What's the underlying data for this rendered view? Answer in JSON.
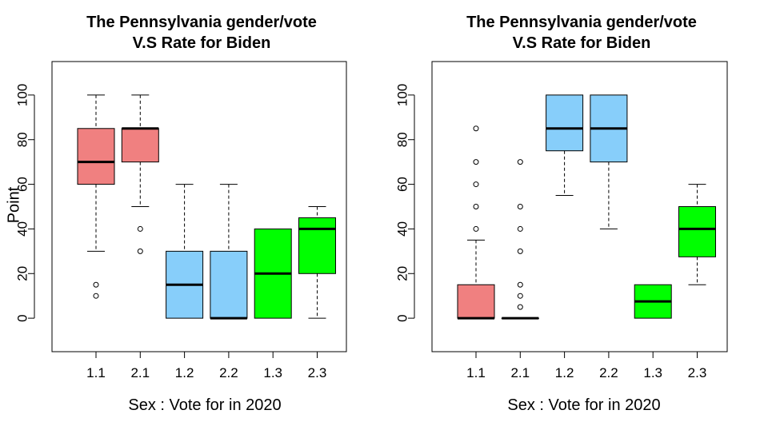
{
  "chart_data": [
    {
      "type": "boxplot",
      "title_lines": [
        "The Pennsylvania gender/vote",
        "V.S Rate for Biden"
      ],
      "xlabel": "Sex : Vote for in 2020",
      "ylabel": "Point",
      "ylim": [
        -15,
        115
      ],
      "yticks": [
        "0",
        "20",
        "40",
        "60",
        "80",
        "100"
      ],
      "categories": [
        "1.1",
        "2.1",
        "1.2",
        "2.2",
        "1.3",
        "2.3"
      ],
      "boxes": [
        {
          "q1": 60,
          "median": 70,
          "q3": 85,
          "whisker_low": 30,
          "whisker_high": 100,
          "outliers": [
            15,
            10
          ],
          "color": "#f08080"
        },
        {
          "q1": 70,
          "median": 85,
          "q3": 85,
          "whisker_low": 50,
          "whisker_high": 100,
          "outliers": [
            40,
            30
          ],
          "color": "#f08080"
        },
        {
          "q1": 0,
          "median": 15,
          "q3": 30,
          "whisker_low": 0,
          "whisker_high": 60,
          "outliers": [],
          "color": "#87cefa"
        },
        {
          "q1": 0,
          "median": 0,
          "q3": 30,
          "whisker_low": 0,
          "whisker_high": 60,
          "outliers": [],
          "color": "#87cefa"
        },
        {
          "q1": 0,
          "median": 20,
          "q3": 40,
          "whisker_low": 0,
          "whisker_high": 40,
          "outliers": [],
          "color": "#00ff00"
        },
        {
          "q1": 20,
          "median": 40,
          "q3": 45,
          "whisker_low": 0,
          "whisker_high": 50,
          "outliers": [],
          "color": "#00ff00"
        }
      ]
    },
    {
      "type": "boxplot",
      "title_lines": [
        "The Pennsylvania gender/vote",
        "V.S Rate for Biden"
      ],
      "xlabel": "Sex : Vote for in 2020",
      "ylabel": "",
      "ylim": [
        -15,
        115
      ],
      "yticks": [
        "0",
        "20",
        "40",
        "60",
        "80",
        "100"
      ],
      "categories": [
        "1.1",
        "2.1",
        "1.2",
        "2.2",
        "1.3",
        "2.3"
      ],
      "boxes": [
        {
          "q1": 0,
          "median": 0,
          "q3": 15,
          "whisker_low": 0,
          "whisker_high": 35,
          "outliers": [
            40,
            50,
            60,
            70,
            85
          ],
          "color": "#f08080"
        },
        {
          "q1": 0,
          "median": 0,
          "q3": 0,
          "whisker_low": 0,
          "whisker_high": 0,
          "outliers": [
            5,
            10,
            15,
            30,
            40,
            50,
            70
          ],
          "color": "#f08080"
        },
        {
          "q1": 75,
          "median": 85,
          "q3": 100,
          "whisker_low": 55,
          "whisker_high": 100,
          "outliers": [],
          "color": "#87cefa"
        },
        {
          "q1": 70,
          "median": 85,
          "q3": 100,
          "whisker_low": 40,
          "whisker_high": 100,
          "outliers": [],
          "color": "#87cefa"
        },
        {
          "q1": 0,
          "median": 7.5,
          "q3": 15,
          "whisker_low": 0,
          "whisker_high": 15,
          "outliers": [],
          "color": "#00ff00"
        },
        {
          "q1": 27.5,
          "median": 40,
          "q3": 50,
          "whisker_low": 15,
          "whisker_high": 60,
          "outliers": [],
          "color": "#00ff00"
        }
      ]
    }
  ]
}
